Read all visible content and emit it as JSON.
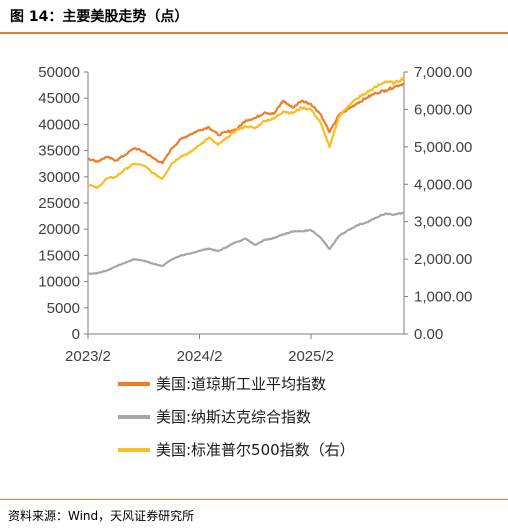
{
  "header": {
    "title": "图 14：主要美股走势（点）"
  },
  "footer": {
    "source": "资料来源：Wind，天风证券研究所"
  },
  "colors": {
    "dow": "#ee7d2a",
    "nasdaq": "#a6a6a6",
    "sp500": "#fdbd21",
    "axis": "#7f7f7f",
    "rule": "#e8782b"
  },
  "chart_data": {
    "type": "line",
    "x_ticks": [
      "2023/2",
      "2024/2",
      "2025/2"
    ],
    "x_range": [
      "2023-02",
      "2025-12"
    ],
    "y_left": {
      "ticks": [
        "0",
        "5000",
        "10000",
        "15000",
        "20000",
        "25000",
        "30000",
        "35000",
        "40000",
        "45000",
        "50000"
      ],
      "ylim": [
        0,
        50000
      ]
    },
    "y_right": {
      "ticks": [
        "0.00",
        "1,000.00",
        "2,000.00",
        "3,000.00",
        "4,000.00",
        "5,000.00",
        "6,000.00",
        "7,000.00"
      ],
      "ylim": [
        0,
        7000
      ]
    },
    "series": [
      {
        "name": "美国:道琼斯工业平均指数",
        "axis": "left",
        "color": "#ee7d2a",
        "x": [
          "2023-02",
          "2023-03",
          "2023-04",
          "2023-05",
          "2023-06",
          "2023-07",
          "2023-08",
          "2023-09",
          "2023-10",
          "2023-11",
          "2023-12",
          "2024-01",
          "2024-02",
          "2024-03",
          "2024-04",
          "2024-05",
          "2024-06",
          "2024-07",
          "2024-08",
          "2024-09",
          "2024-10",
          "2024-11",
          "2024-12",
          "2025-01",
          "2025-02",
          "2025-03",
          "2025-04",
          "2025-05",
          "2025-06",
          "2025-07",
          "2025-08",
          "2025-09",
          "2025-10",
          "2025-11",
          "2025-12"
        ],
        "values": [
          33500,
          32900,
          33800,
          33100,
          34200,
          35500,
          34800,
          33600,
          32600,
          35400,
          37200,
          38100,
          38900,
          39500,
          38000,
          38600,
          39100,
          40800,
          41200,
          42300,
          42000,
          44500,
          43200,
          44500,
          43900,
          42000,
          38500,
          41800,
          42900,
          44100,
          45100,
          46000,
          46500,
          47200,
          47800
        ]
      },
      {
        "name": "美国:纳斯达克综合指数",
        "axis": "left",
        "color": "#a6a6a6",
        "x": [
          "2023-02",
          "2023-03",
          "2023-04",
          "2023-05",
          "2023-06",
          "2023-07",
          "2023-08",
          "2023-09",
          "2023-10",
          "2023-11",
          "2023-12",
          "2024-01",
          "2024-02",
          "2024-03",
          "2024-04",
          "2024-05",
          "2024-06",
          "2024-07",
          "2024-08",
          "2024-09",
          "2024-10",
          "2024-11",
          "2024-12",
          "2025-01",
          "2025-02",
          "2025-03",
          "2025-04",
          "2025-05",
          "2025-06",
          "2025-07",
          "2025-08",
          "2025-09",
          "2025-10",
          "2025-11",
          "2025-12"
        ],
        "values": [
          11500,
          11600,
          12100,
          12900,
          13600,
          14300,
          14000,
          13400,
          13000,
          14200,
          15000,
          15300,
          15900,
          16300,
          15800,
          16700,
          17600,
          18200,
          17000,
          18000,
          18300,
          19000,
          19600,
          19600,
          19800,
          18400,
          16200,
          18700,
          19800,
          20800,
          21300,
          22200,
          23000,
          22800,
          23200
        ]
      },
      {
        "name": "美国:标准普尔500指数（右）",
        "axis": "right",
        "color": "#fdbd21",
        "x": [
          "2023-02",
          "2023-03",
          "2023-04",
          "2023-05",
          "2023-06",
          "2023-07",
          "2023-08",
          "2023-09",
          "2023-10",
          "2023-11",
          "2023-12",
          "2024-01",
          "2024-02",
          "2024-03",
          "2024-04",
          "2024-05",
          "2024-06",
          "2024-07",
          "2024-08",
          "2024-09",
          "2024-10",
          "2024-11",
          "2024-12",
          "2025-01",
          "2025-02",
          "2025-03",
          "2025-04",
          "2025-05",
          "2025-06",
          "2025-07",
          "2025-08",
          "2025-09",
          "2025-10",
          "2025-11",
          "2025-12"
        ],
        "values": [
          4000,
          3900,
          4150,
          4200,
          4400,
          4550,
          4500,
          4300,
          4150,
          4550,
          4750,
          4850,
          5050,
          5250,
          5050,
          5250,
          5450,
          5550,
          5500,
          5700,
          5750,
          5950,
          5900,
          6050,
          6000,
          5650,
          5000,
          5800,
          6100,
          6300,
          6450,
          6600,
          6750,
          6700,
          6850
        ]
      }
    ]
  }
}
